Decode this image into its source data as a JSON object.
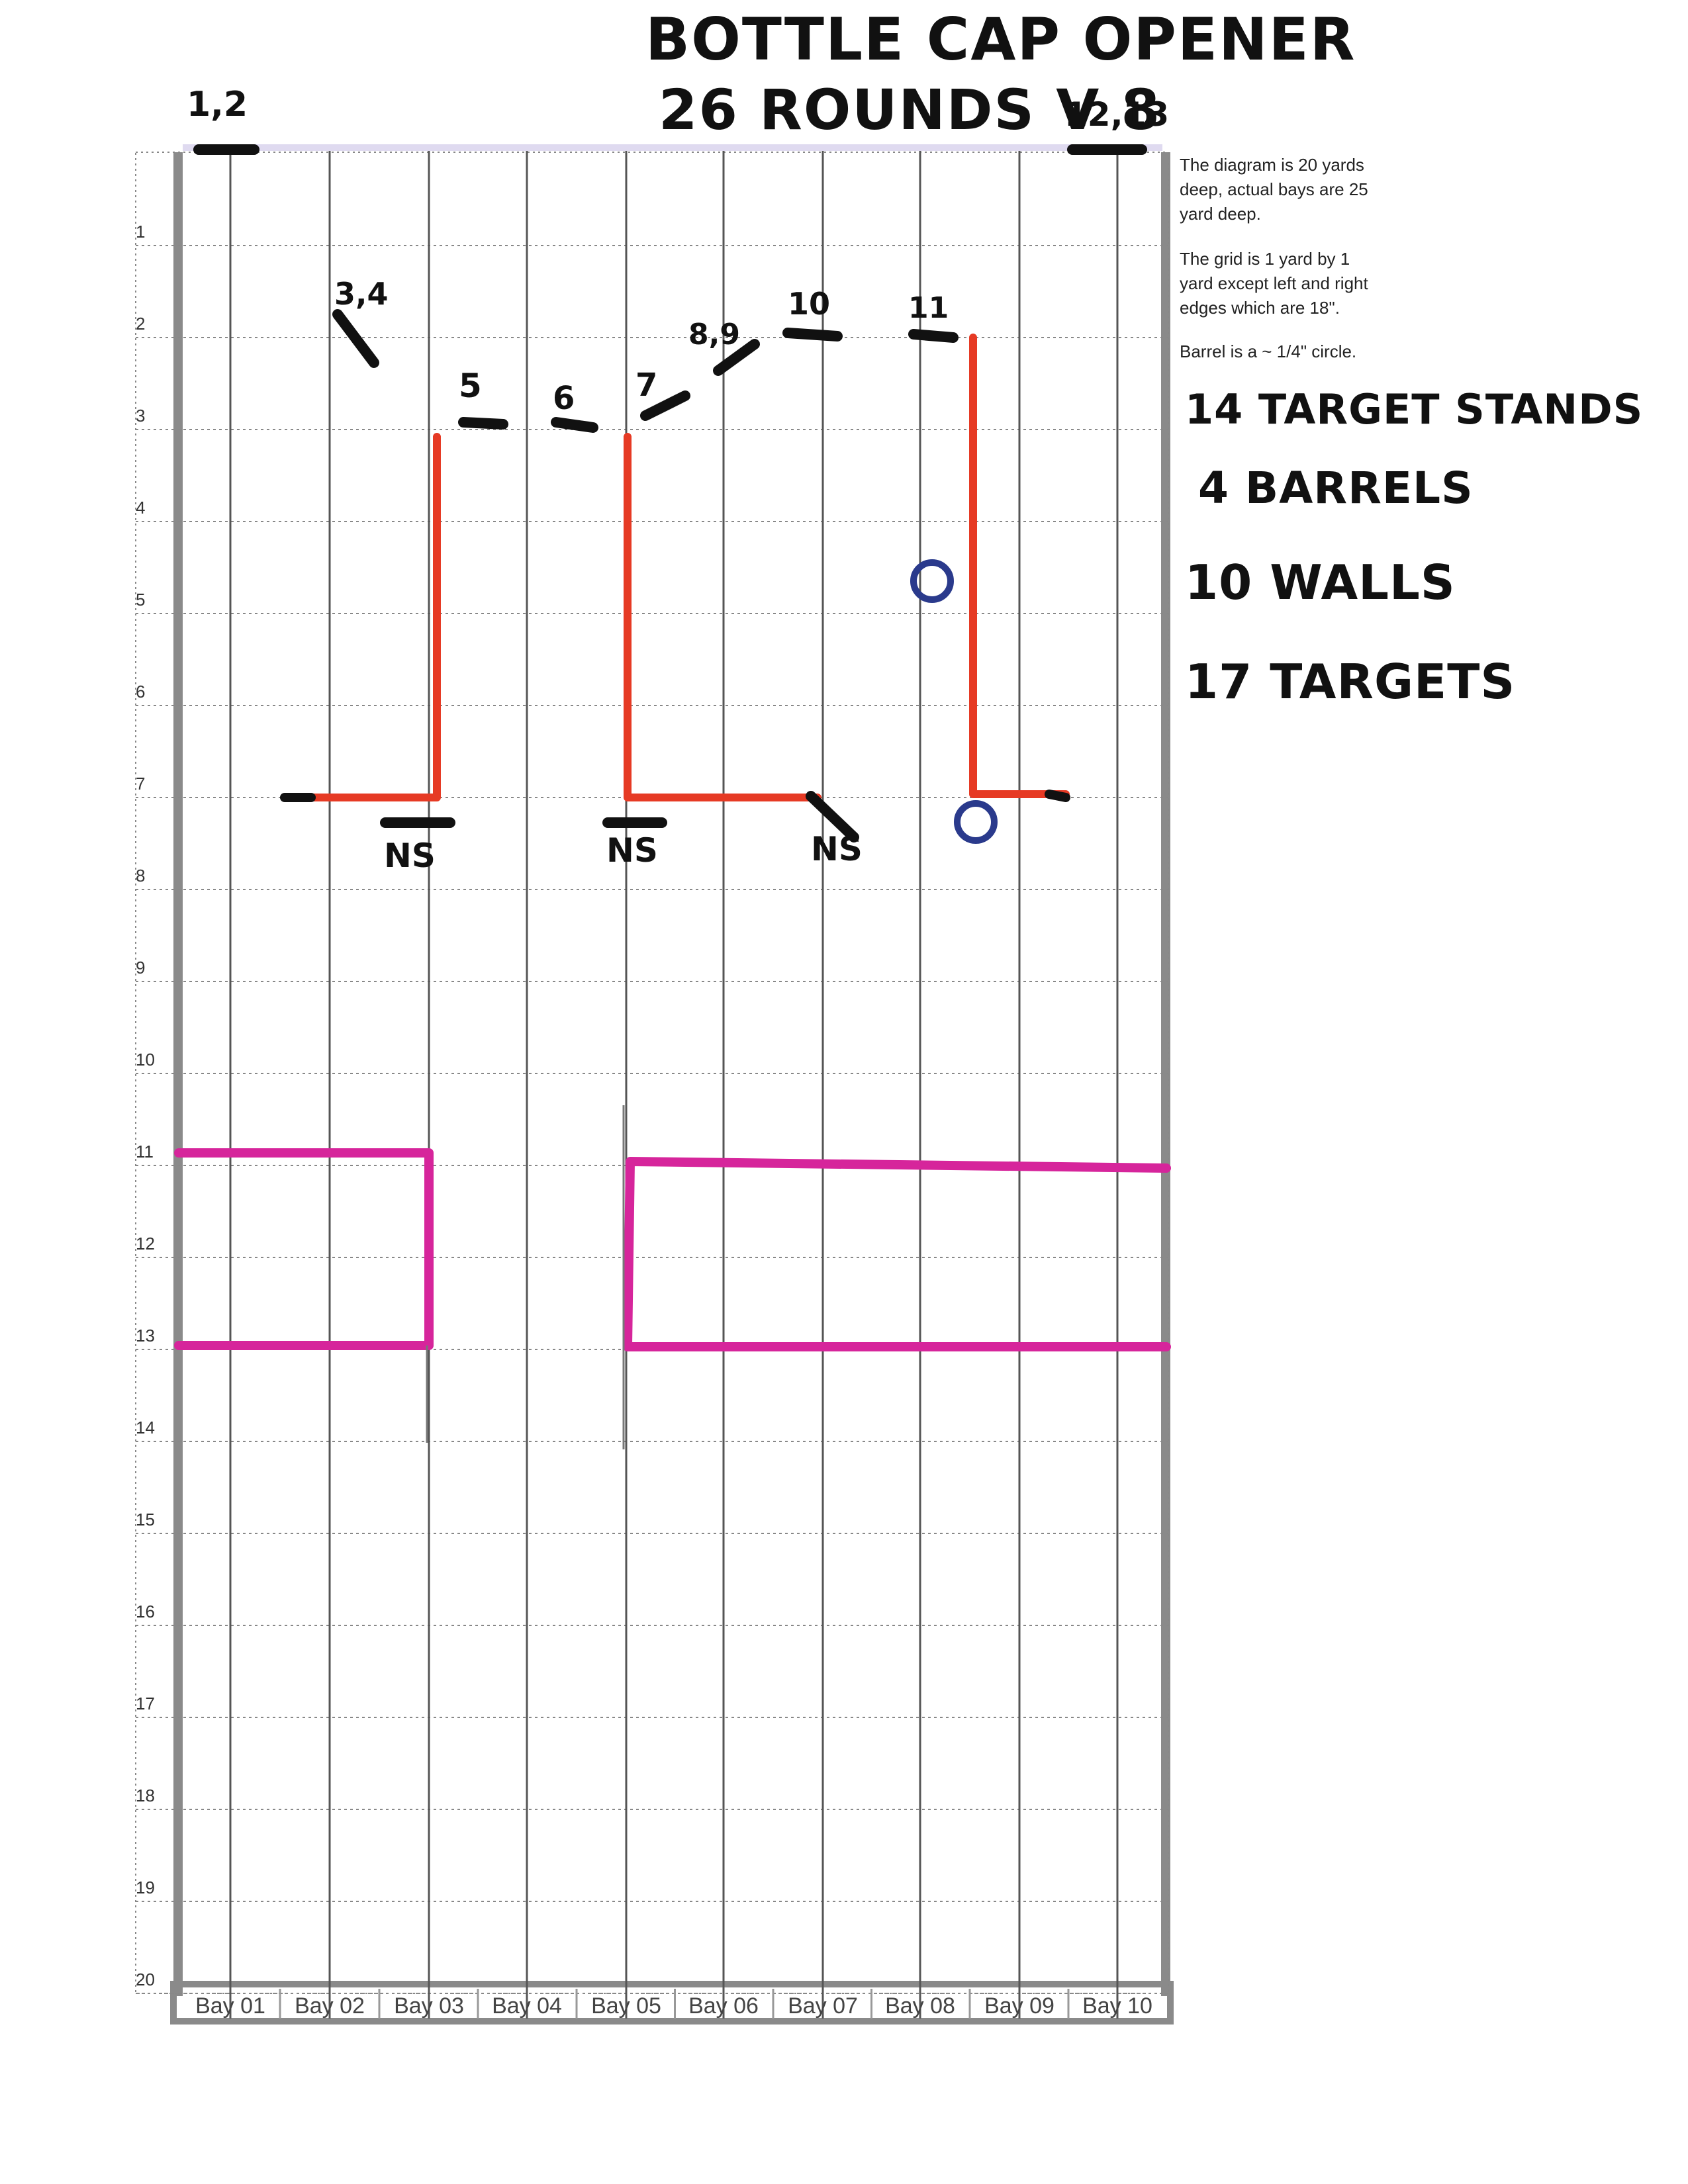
{
  "title": {
    "line1": "BOTTLE CAP OPENER",
    "line2": "26 ROUNDS V 8"
  },
  "notes": [
    "The diagram is 20 yards",
    "deep, actual bays are 25",
    "yard deep.",
    "The grid is 1 yard by 1",
    "yard except left and right",
    "edges which are 18\".",
    "Barrel is a ~ 1/4\" circle."
  ],
  "totals": [
    "14 TARGET STANDS",
    "4 BARRELS",
    "10 WALLS",
    "17 TARGETS"
  ],
  "grid": {
    "rows": [
      "1",
      "2",
      "3",
      "4",
      "5",
      "6",
      "7",
      "8",
      "9",
      "10",
      "11",
      "12",
      "13",
      "14",
      "15",
      "16",
      "17",
      "18",
      "19",
      "20"
    ],
    "bays": [
      "Bay 01",
      "Bay 02",
      "Bay 03",
      "Bay 04",
      "Bay 05",
      "Bay 06",
      "Bay 07",
      "Bay 08",
      "Bay 09",
      "Bay 10"
    ]
  },
  "target_labels": [
    "1,2",
    "3,4",
    "5",
    "6",
    "7",
    "8,9",
    "10",
    "11",
    "12,13"
  ],
  "no_shoot_labels": [
    "NS",
    "NS",
    "NS"
  ],
  "colors": {
    "wall_red": "#e63a24",
    "wall_magenta": "#d6259b",
    "barrel_blue": "#2a3a8c",
    "marker_black": "#111111",
    "grid_line": "#555555",
    "grid_dot": "#888888",
    "border_gray": "#8a8a8a"
  },
  "icons": {
    "barrel": "circle-outline",
    "target_stand": "black-dash",
    "wall": "thick-line"
  }
}
